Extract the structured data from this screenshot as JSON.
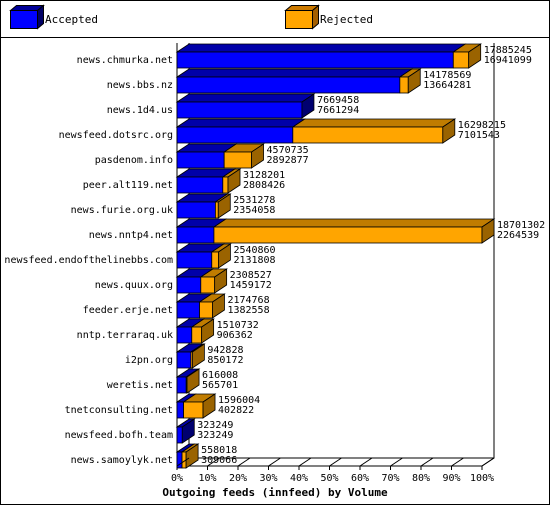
{
  "chart_data": {
    "type": "bar",
    "orientation": "horizontal",
    "stacked": true,
    "title": "Outgoing feeds (innfeed) by Volume",
    "xlabel": "",
    "ylabel": "",
    "xlim": [
      0,
      100
    ],
    "x_ticks": [
      "0%",
      "10%",
      "20%",
      "30%",
      "40%",
      "50%",
      "60%",
      "70%",
      "80%",
      "90%",
      "100%"
    ],
    "grid": false,
    "legend_position": "top",
    "series": [
      {
        "name": "Accepted",
        "color": "#0000ff"
      },
      {
        "name": "Rejected",
        "color": "#ffa500"
      }
    ],
    "categories": [
      "news.chmurka.net",
      "news.bbs.nz",
      "news.1d4.us",
      "newsfeed.dotsrc.org",
      "pasdenom.info",
      "peer.alt119.net",
      "news.furie.org.uk",
      "news.nntp4.net",
      "newsfeed.endofthelinebbs.com",
      "news.quux.org",
      "feeder.erje.net",
      "nntp.terraraq.uk",
      "i2pn.org",
      "weretis.net",
      "tnetconsulting.net",
      "newsfeed.bofh.team",
      "news.samoylyk.net"
    ],
    "totals": [
      "17885245",
      "14178569",
      "7669458",
      "16298215",
      "4570735",
      "3128201",
      "2531278",
      "18701302",
      "2540860",
      "2308527",
      "2174768",
      "1510732",
      "942828",
      "616008",
      "1596004",
      "323249",
      "558018"
    ],
    "accepted": [
      "16941099",
      "13664281",
      "7661294",
      "7101543",
      "2892877",
      "2808426",
      "2354058",
      "2264539",
      "2131808",
      "1459172",
      "1382558",
      "906362",
      "850172",
      "565701",
      "402822",
      "323249",
      "309066"
    ]
  }
}
